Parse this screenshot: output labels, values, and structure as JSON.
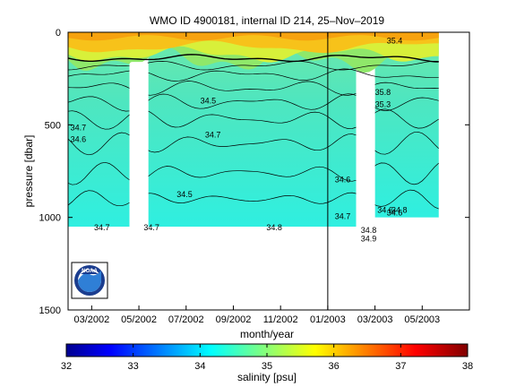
{
  "chart_data": {
    "type": "heatmap",
    "title": "WMO ID 4900181, internal ID 214, 25–Nov–2019",
    "xlabel": "month/year",
    "ylabel": "pressure [dbar]",
    "x_ticks": [
      "03/2002",
      "05/2002",
      "07/2002",
      "09/2002",
      "11/2002",
      "01/2003",
      "03/2003",
      "05/2003"
    ],
    "xlim": [
      "2002-02",
      "2003-07"
    ],
    "y_ticks": [
      0,
      500,
      1000,
      1500
    ],
    "ylim": [
      1500,
      0
    ],
    "y_inverted": true,
    "grid": false,
    "marker_date": "2003-01",
    "data_gaps": [
      {
        "start": "2002-04.6",
        "end": "2002-05.4",
        "top_pressure": 160
      },
      {
        "start": "2003-02.2",
        "end": "2003-03.0",
        "top_pressure": 240
      }
    ],
    "data_columns": [
      {
        "start": "2002-02",
        "end": "2002-04.6",
        "bottom_pressure": 1050
      },
      {
        "start": "2002-05.4",
        "end": "2003-02.2",
        "bottom_pressure": 1050
      },
      {
        "start": "2003-03.0",
        "end": "2003-05.7",
        "bottom_pressure": 1000
      }
    ],
    "contour_labels": [
      {
        "text": "34.7",
        "date": "2002-02.1",
        "pressure": 515
      },
      {
        "text": "34.6",
        "date": "2002-02.1",
        "pressure": 578
      },
      {
        "text": "34.5",
        "date": "2002-07.6",
        "pressure": 370
      },
      {
        "text": "34.7",
        "date": "2002-07.8",
        "pressure": 555
      },
      {
        "text": "34.5",
        "date": "2002-06.6",
        "pressure": 875
      },
      {
        "text": "34.6",
        "date": "2003-01.3",
        "pressure": 795
      },
      {
        "text": "34.7",
        "date": "2003-01.3",
        "pressure": 995
      },
      {
        "text": "34.6",
        "date": "2003-03.1",
        "pressure": 960
      },
      {
        "text": "34.6",
        "date": "2003-03.5",
        "pressure": 975
      },
      {
        "text": "34.8",
        "date": "2003-03.7",
        "pressure": 960
      },
      {
        "text": "34.7",
        "date": "2002-03.1",
        "pressure": 1055
      },
      {
        "text": "34.7",
        "date": "2002-05.2",
        "pressure": 1055
      },
      {
        "text": "34.8",
        "date": "2002-10.4",
        "pressure": 1055
      },
      {
        "text": "34.8",
        "date": "2003-02.4",
        "pressure": 1070
      },
      {
        "text": "34.9",
        "date": "2003-02.4",
        "pressure": 1115
      },
      {
        "text": "35.8",
        "date": "2003-03.0",
        "pressure": 325
      },
      {
        "text": "35.3",
        "date": "2003-03.0",
        "pressure": 390
      },
      {
        "text": "35.4",
        "date": "2003-03.5",
        "pressure": 45
      }
    ],
    "colorbar": {
      "label": "salinity [psu]",
      "ticks": [
        32,
        33,
        34,
        35,
        36,
        37,
        38
      ],
      "range": [
        32,
        38
      ],
      "colormap": "jet"
    },
    "legend": "none",
    "logo": "noaa-logo"
  }
}
